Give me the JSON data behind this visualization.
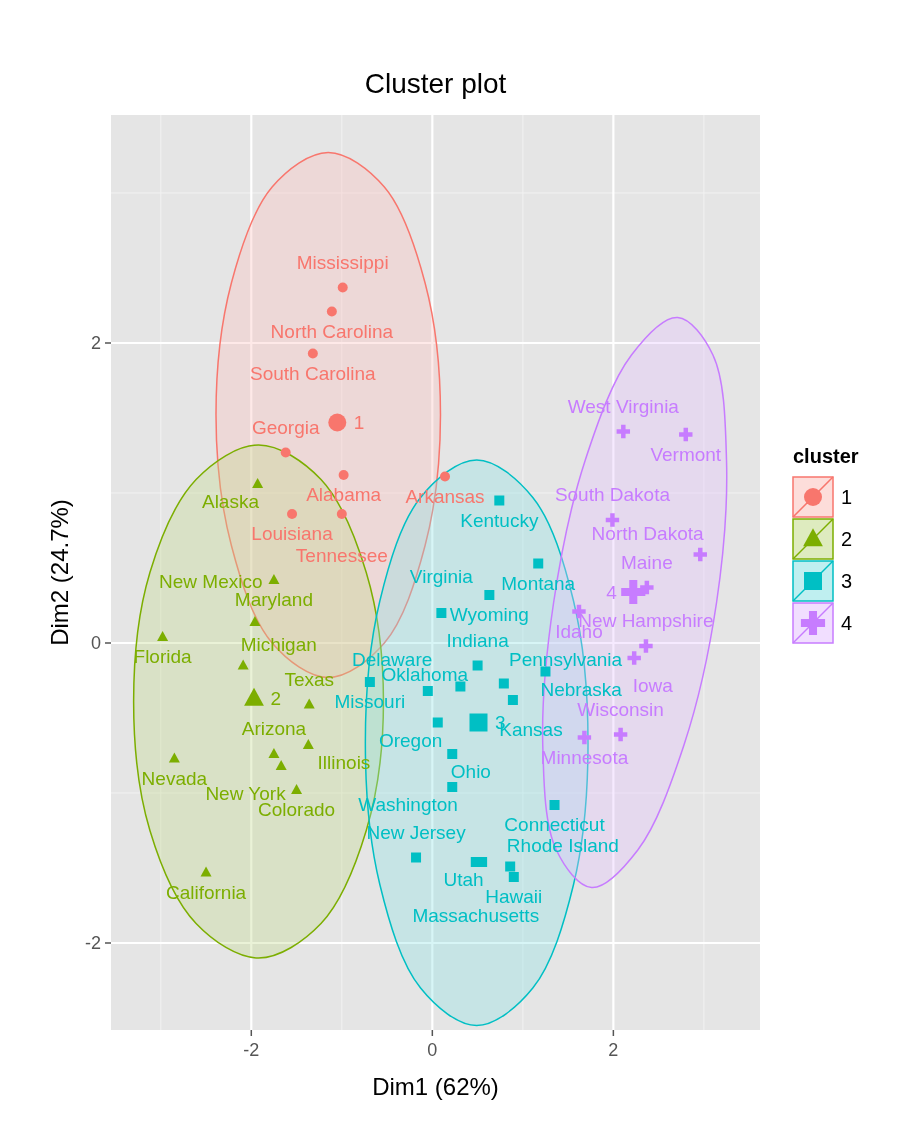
{
  "chart_data": {
    "type": "scatter",
    "title": "Cluster plot",
    "xlabel": "Dim1 (62%)",
    "ylabel": "Dim2 (24.7%)",
    "legend_title": "cluster",
    "legend": "right",
    "grid": true,
    "xlim": [
      -3.55,
      3.62
    ],
    "ylim": [
      -2.58,
      3.52
    ],
    "xticks": [
      -2,
      0,
      2
    ],
    "yticks": [
      -2,
      0,
      2
    ],
    "series": [
      {
        "name": "1",
        "color": "#f8766d",
        "marker": "circle",
        "x": [
          -0.98,
          0.14,
          -1.62,
          -1.55,
          -0.99,
          -1.11,
          -1.32,
          -1.0
        ],
        "values": [
          1.12,
          1.11,
          1.27,
          0.86,
          2.37,
          2.21,
          1.93,
          0.86
        ]
      },
      {
        "name": "2",
        "color": "#7cae00",
        "marker": "triangle",
        "x": [
          -1.93,
          -1.75,
          -2.5,
          -1.5,
          -2.98,
          -1.37,
          -1.75,
          -2.09,
          -2.85,
          -1.96,
          -1.67,
          -1.36
        ],
        "values": [
          1.06,
          -0.74,
          -1.53,
          -0.98,
          0.04,
          -0.68,
          0.42,
          -0.15,
          -0.77,
          0.14,
          -0.82,
          -0.41
        ]
      },
      {
        "name": "3",
        "color": "#00bfc4",
        "marker": "square",
        "x": [
          1.35,
          -0.05,
          0.9,
          0.5,
          0.79,
          0.74,
          0.48,
          -0.69,
          1.17,
          1.25,
          -0.18,
          0.22,
          0.31,
          0.06,
          0.89,
          0.86,
          0.55,
          0.1,
          0.22,
          0.63
        ],
        "values": [
          -1.08,
          -0.32,
          -1.56,
          -0.15,
          -0.27,
          0.95,
          -1.46,
          -0.26,
          0.53,
          -0.19,
          -1.43,
          -0.74,
          -0.29,
          -0.53,
          -0.38,
          -1.49,
          -1.46,
          0.2,
          -0.96,
          0.32
        ]
      },
      {
        "name": "4",
        "color": "#c77cff",
        "marker": "cross",
        "x": [
          1.62,
          2.23,
          2.37,
          1.68,
          2.36,
          2.96,
          1.99,
          2.8,
          2.11,
          2.08
        ],
        "values": [
          0.21,
          -0.1,
          0.37,
          -0.63,
          -0.02,
          0.59,
          0.82,
          1.39,
          1.41,
          -0.61
        ]
      },
      {
        "color": "#f8766d",
        "marker": "circle",
        "x": [
          -1.05
        ],
        "values": [
          1.47
        ]
      },
      {
        "color": "#7cae00",
        "marker": "triangle",
        "x": [
          -1.97
        ],
        "values": [
          -0.37
        ]
      },
      {
        "color": "#00bfc4",
        "marker": "square",
        "x": [
          0.51
        ],
        "values": [
          -0.53
        ]
      },
      {
        "color": "#c77cff",
        "marker": "cross",
        "x": [
          2.22
        ],
        "values": [
          0.34
        ]
      },
      {
        "type": "area",
        "color": "#f8766d",
        "x": [
          0.09,
          -0.08,
          -0.53,
          -1.15,
          -1.77,
          -2.22,
          -2.39,
          -2.22,
          -1.77,
          -1.15,
          -0.53,
          -0.08,
          0.09
        ],
        "values": [
          1.52,
          2.4,
          3.04,
          3.27,
          3.04,
          2.4,
          1.52,
          0.65,
          0.0,
          -0.23,
          0.0,
          0.65,
          1.52
        ]
      },
      {
        "type": "area",
        "color": "#7cae00",
        "x": [
          -0.54,
          -0.73,
          -1.23,
          -1.92,
          -2.61,
          -3.12,
          -3.3,
          -3.12,
          -2.61,
          -1.92,
          -1.23,
          -0.73,
          -0.54
        ],
        "values": [
          -0.39,
          0.47,
          1.09,
          1.32,
          1.09,
          0.47,
          -0.39,
          -1.25,
          -1.87,
          -2.1,
          -1.87,
          -1.25,
          -0.39
        ]
      },
      {
        "type": "area",
        "color": "#00bfc4",
        "x": [
          1.72,
          1.56,
          1.11,
          0.49,
          -0.13,
          -0.58,
          -0.74,
          -0.58,
          -0.13,
          0.49,
          1.11,
          1.56,
          1.72
        ],
        "values": [
          -0.67,
          0.28,
          0.97,
          1.22,
          0.97,
          0.28,
          -0.67,
          -1.61,
          -2.3,
          -2.55,
          -2.3,
          -1.61,
          -0.67
        ]
      },
      {
        "type": "area",
        "color": "#c77cff",
        "x": [
          3.14,
          3.25,
          3.1,
          2.71,
          2.2,
          1.69,
          1.34,
          1.22,
          1.37,
          1.76,
          2.27,
          2.78,
          3.14
        ],
        "values": [
          0.27,
          1.22,
          1.92,
          2.17,
          1.92,
          1.22,
          0.27,
          -0.68,
          -1.38,
          -1.63,
          -1.38,
          -0.68,
          0.27
        ]
      }
    ],
    "annotations": [
      {
        "text": "1",
        "x": -1.05,
        "y": 1.47
      },
      {
        "text": "2",
        "x": -1.97,
        "y": -0.37
      },
      {
        "text": "3",
        "x": 0.51,
        "y": -0.53
      },
      {
        "text": "4",
        "x": 2.22,
        "y": 0.34
      },
      {
        "text": "Alabama",
        "x": -0.98,
        "y": 1.12
      },
      {
        "text": "Arkansas",
        "x": 0.14,
        "y": 1.11
      },
      {
        "text": "Georgia",
        "x": -1.62,
        "y": 1.27
      },
      {
        "text": "Louisiana",
        "x": -1.55,
        "y": 0.86
      },
      {
        "text": "Mississippi",
        "x": -0.99,
        "y": 2.37
      },
      {
        "text": "North Carolina",
        "x": -1.11,
        "y": 2.21
      },
      {
        "text": "South Carolina",
        "x": -1.32,
        "y": 1.93
      },
      {
        "text": "Tennessee",
        "x": -1.0,
        "y": 0.86
      },
      {
        "text": "Alaska",
        "x": -1.93,
        "y": 1.06
      },
      {
        "text": "Arizona",
        "x": -1.75,
        "y": -0.74
      },
      {
        "text": "California",
        "x": -2.5,
        "y": -1.53
      },
      {
        "text": "Colorado",
        "x": -1.5,
        "y": -0.98
      },
      {
        "text": "Florida",
        "x": -2.98,
        "y": 0.04
      },
      {
        "text": "Illinois",
        "x": -1.37,
        "y": -0.68
      },
      {
        "text": "Maryland",
        "x": -1.75,
        "y": 0.42
      },
      {
        "text": "Michigan",
        "x": -2.09,
        "y": -0.15
      },
      {
        "text": "Nevada",
        "x": -2.85,
        "y": -0.77
      },
      {
        "text": "New Mexico",
        "x": -1.96,
        "y": 0.14
      },
      {
        "text": "New York",
        "x": -1.67,
        "y": -0.82
      },
      {
        "text": "Texas",
        "x": -1.36,
        "y": -0.41
      },
      {
        "text": "Connecticut",
        "x": 1.35,
        "y": -1.08
      },
      {
        "text": "Delaware",
        "x": -0.05,
        "y": -0.32
      },
      {
        "text": "Hawaii",
        "x": 0.9,
        "y": -1.56
      },
      {
        "text": "Indiana",
        "x": 0.5,
        "y": -0.15
      },
      {
        "text": "Kansas",
        "x": 0.79,
        "y": -0.27
      },
      {
        "text": "Kentucky",
        "x": 0.74,
        "y": 0.95
      },
      {
        "text": "Massachusetts",
        "x": 0.48,
        "y": -1.46
      },
      {
        "text": "Missouri",
        "x": -0.69,
        "y": -0.26
      },
      {
        "text": "Montana",
        "x": 1.17,
        "y": 0.53
      },
      {
        "text": "Nebraska",
        "x": 1.25,
        "y": -0.19
      },
      {
        "text": "New Jersey",
        "x": -0.18,
        "y": -1.43
      },
      {
        "text": "Ohio",
        "x": 0.22,
        "y": -0.74
      },
      {
        "text": "Oklahoma",
        "x": 0.31,
        "y": -0.29
      },
      {
        "text": "Oregon",
        "x": 0.06,
        "y": -0.53
      },
      {
        "text": "Pennsylvania",
        "x": 0.89,
        "y": -0.38
      },
      {
        "text": "Rhode Island",
        "x": 0.86,
        "y": -1.49
      },
      {
        "text": "Utah",
        "x": 0.55,
        "y": -1.46
      },
      {
        "text": "Virginia",
        "x": 0.1,
        "y": 0.2
      },
      {
        "text": "Washington",
        "x": 0.22,
        "y": -0.96
      },
      {
        "text": "Wyoming",
        "x": 0.63,
        "y": 0.32
      },
      {
        "text": "Idaho",
        "x": 1.62,
        "y": 0.21
      },
      {
        "text": "Iowa",
        "x": 2.23,
        "y": -0.1
      },
      {
        "text": "Maine",
        "x": 2.37,
        "y": 0.37
      },
      {
        "text": "Minnesota",
        "x": 1.68,
        "y": -0.63
      },
      {
        "text": "New Hampshire",
        "x": 2.36,
        "y": -0.02
      },
      {
        "text": "North Dakota",
        "x": 2.96,
        "y": 0.59
      },
      {
        "text": "South Dakota",
        "x": 1.99,
        "y": 0.82
      },
      {
        "text": "Vermont",
        "x": 2.8,
        "y": 1.39
      },
      {
        "text": "West Virginia",
        "x": 2.11,
        "y": 1.41
      },
      {
        "text": "Wisconsin",
        "x": 2.08,
        "y": -0.61
      }
    ]
  }
}
